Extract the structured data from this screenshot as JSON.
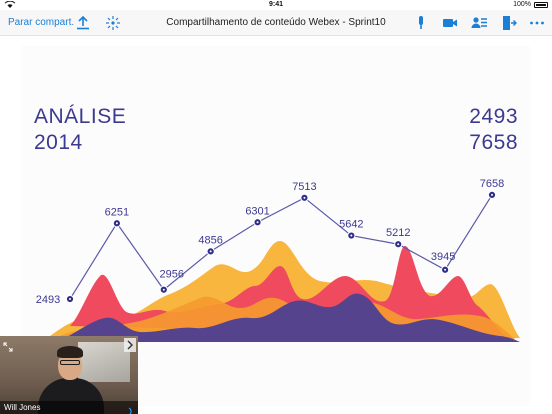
{
  "status_bar": {
    "time": "9:41",
    "battery": "100%",
    "carrier_icon": "wifi-icon"
  },
  "toolbar": {
    "stop_share_label": "Parar compart.",
    "title": "Compartilhamento de conteúdo Webex - Sprint10",
    "icons": [
      "share-upload-icon",
      "proximity-icon",
      "microphone-icon",
      "video-camera-icon",
      "participants-icon",
      "leave-icon",
      "more-icon"
    ],
    "accent": "#1a7fd6"
  },
  "slide": {
    "title_line1": "ANÁLISE",
    "title_line2": "2014",
    "value_line1": "2493",
    "value_line2": "7658",
    "text_color": "#3c3a8f"
  },
  "chart_data": {
    "type": "line",
    "points": [
      {
        "label": "2493",
        "value": 2493
      },
      {
        "label": "6251",
        "value": 6251
      },
      {
        "label": "2956",
        "value": 2956
      },
      {
        "label": "4856",
        "value": 4856
      },
      {
        "label": "6301",
        "value": 6301
      },
      {
        "label": "7513",
        "value": 7513
      },
      {
        "label": "5642",
        "value": 5642
      },
      {
        "label": "5212",
        "value": 5212
      },
      {
        "label": "3945",
        "value": 3945
      },
      {
        "label": "7658",
        "value": 7658
      }
    ],
    "series_colors": {
      "line": "#5a5aa8",
      "marker": "#2e2e86",
      "yellow": "#f9b63e",
      "orange": "#f59a2f",
      "red": "#ef4a5d",
      "purple": "#55438e"
    }
  },
  "video": {
    "participant_name": "Will Jones"
  }
}
